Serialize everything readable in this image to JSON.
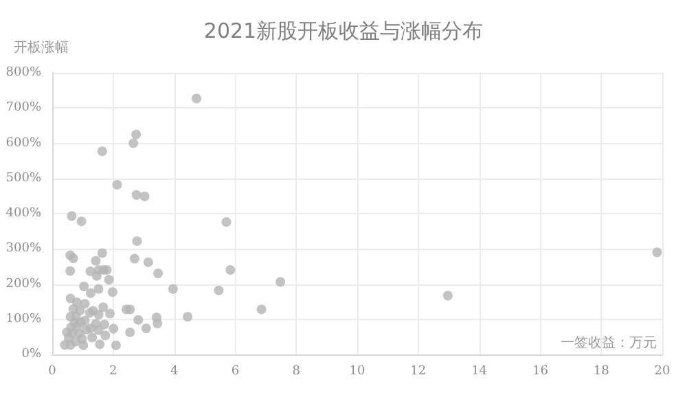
{
  "chart_data": {
    "type": "scatter",
    "title": "2021新股开板收益与涨幅分布",
    "xlabel": "一签收益：万元",
    "ylabel": "开板涨幅",
    "x": [
      2.75,
      2.66,
      1.64,
      2.13,
      2.76,
      3.03,
      0.64,
      0.96,
      2.78,
      0.59,
      0.69,
      1.64,
      1.43,
      2.7,
      3.15,
      0.59,
      1.25,
      1.52,
      1.68,
      1.79,
      3.47,
      1.46,
      1.86,
      3.96,
      1.04,
      1.52,
      1.26,
      1.98,
      0.6,
      0.81,
      1.07,
      1.67,
      0.69,
      0.91,
      1.34,
      2.43,
      2.55,
      1.23,
      1.89,
      1.52,
      0.6,
      0.78,
      3.42,
      1.07,
      2.82,
      0.73,
      0.93,
      1.43,
      1.71,
      3.45,
      0.62,
      0.81,
      1.25,
      2.01,
      3.08,
      1.11,
      1.52,
      0.48,
      0.66,
      0.89,
      2.55,
      1.74,
      1.31,
      0.54,
      0.98,
      0.77,
      0.41,
      0.6,
      1.02,
      1.56,
      2.09,
      5.71,
      5.84,
      5.46,
      7.48,
      6.86,
      4.44,
      4.73,
      12.97,
      19.83
    ],
    "values": [
      625,
      600,
      577,
      482,
      453,
      449,
      393,
      378,
      322,
      282,
      273,
      288,
      266,
      272,
      262,
      237,
      236,
      240,
      240,
      240,
      230,
      223,
      212,
      186,
      193,
      186,
      174,
      177,
      159,
      148,
      144,
      134,
      129,
      125,
      124,
      128,
      128,
      118,
      116,
      113,
      107,
      108,
      105,
      96,
      98,
      90,
      91,
      87,
      85,
      88,
      77,
      79,
      74,
      73,
      74,
      70,
      69,
      63,
      60,
      59,
      63,
      54,
      48,
      46,
      44,
      36,
      27,
      27,
      26,
      29,
      26,
      376,
      240,
      182,
      206,
      128,
      107,
      727,
      167,
      290
    ],
    "color": "#b4b4b4",
    "marker": "circle",
    "grid": true,
    "xlim": [
      0,
      20
    ],
    "xticks": [
      0,
      2,
      4,
      6,
      8,
      10,
      12,
      14,
      16,
      18,
      20
    ],
    "ylim": [
      0,
      800
    ],
    "yticks": [
      {
        "value": 0,
        "label": "0%"
      },
      {
        "value": 100,
        "label": "100%"
      },
      {
        "value": 200,
        "label": "200%"
      },
      {
        "value": 300,
        "label": "300%"
      },
      {
        "value": 400,
        "label": "400%"
      },
      {
        "value": 500,
        "label": "500%"
      },
      {
        "value": 600,
        "label": "600%"
      },
      {
        "value": 700,
        "label": "700%"
      },
      {
        "value": 800,
        "label": "800%"
      }
    ]
  }
}
